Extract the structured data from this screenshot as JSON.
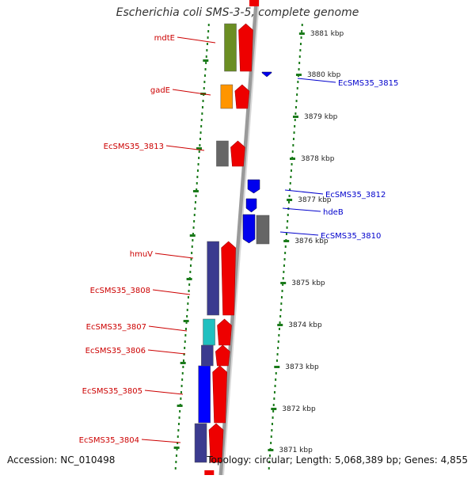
{
  "title": "Escherichia coli SMS-3-5, complete genome",
  "footer": {
    "accession": "Accession: NC_010498",
    "summary": "Topology: circular; Length: 5,068,389 bp; Genes: 4,855"
  },
  "colors": {
    "forward_label": "#cc0000",
    "reverse_label": "#0000cc",
    "tick": "#1a7a1a",
    "backbone": "#888888",
    "cds_forward": "#ee0000",
    "cds_reverse": "#0000ee"
  },
  "kbp_ticks": [
    "3881 kbp",
    "3880 kbp",
    "3879 kbp",
    "3878 kbp",
    "3877 kbp",
    "3876 kbp",
    "3875 kbp",
    "3874 kbp",
    "3873 kbp",
    "3872 kbp",
    "3871 kbp"
  ],
  "forward_gene_labels": [
    "mdtE",
    "gadE",
    "EcSMS35_3813",
    "hmuV",
    "EcSMS35_3808",
    "EcSMS35_3807",
    "EcSMS35_3806",
    "EcSMS35_3805",
    "EcSMS35_3804"
  ],
  "reverse_gene_labels": [
    "EcSMS35_3815",
    "EcSMS35_3812",
    "hdeB",
    "EcSMS35_3810"
  ]
}
